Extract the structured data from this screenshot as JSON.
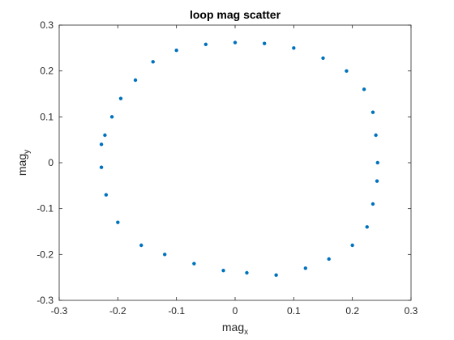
{
  "chart_data": {
    "type": "scatter",
    "title": "loop mag scatter",
    "xlabel": {
      "base": "mag",
      "sub": "x"
    },
    "ylabel": {
      "base": "mag",
      "sub": "y"
    },
    "xlim": [
      -0.3,
      0.3
    ],
    "ylim": [
      -0.3,
      0.3
    ],
    "xticks": [
      -0.3,
      -0.2,
      -0.1,
      0,
      0.1,
      0.2,
      0.3
    ],
    "yticks": [
      -0.3,
      -0.2,
      -0.1,
      0,
      0.1,
      0.2,
      0.3
    ],
    "xtick_labels": [
      "-0.3",
      "-0.2",
      "-0.1",
      "0",
      "0.1",
      "0.2",
      "0.3"
    ],
    "ytick_labels": [
      "-0.3",
      "-0.2",
      "-0.1",
      "0",
      "0.1",
      "0.2",
      "0.3"
    ],
    "grid": false,
    "marker_color": "#0072BD",
    "series": [
      {
        "x": [
          0.0,
          0.05,
          0.1,
          0.15,
          0.19,
          0.22,
          0.235,
          0.24,
          0.243,
          0.242,
          0.235,
          0.225,
          0.2,
          0.16,
          0.12,
          0.07,
          0.02,
          -0.02,
          -0.07,
          -0.12,
          -0.16,
          -0.2,
          -0.22,
          -0.228,
          -0.228,
          -0.222,
          -0.21,
          -0.195,
          -0.17,
          -0.14,
          -0.1,
          -0.05
        ],
        "y": [
          0.262,
          0.26,
          0.25,
          0.228,
          0.2,
          0.16,
          0.11,
          0.06,
          0.0,
          -0.04,
          -0.09,
          -0.14,
          -0.18,
          -0.21,
          -0.23,
          -0.245,
          -0.24,
          -0.235,
          -0.22,
          -0.2,
          -0.18,
          -0.13,
          -0.07,
          -0.01,
          0.04,
          0.06,
          0.1,
          0.14,
          0.18,
          0.22,
          0.245,
          0.258
        ]
      }
    ]
  }
}
